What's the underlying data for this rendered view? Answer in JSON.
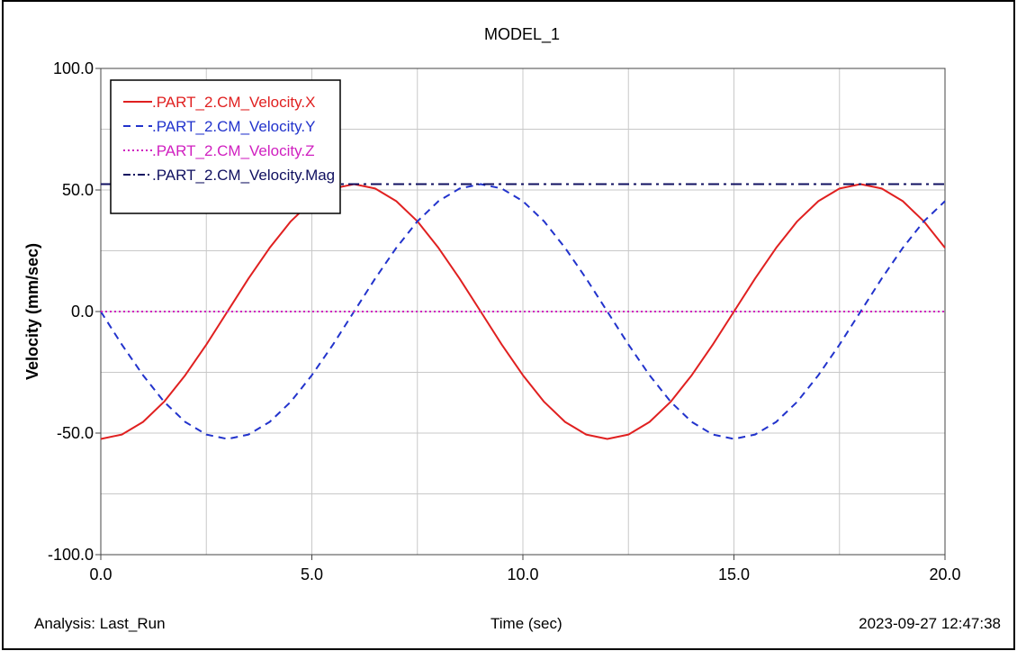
{
  "chart_data": {
    "type": "line",
    "title": "MODEL_1",
    "xlabel": "Time (sec)",
    "ylabel": "Velocity (mm/sec)",
    "xlim": [
      0,
      20
    ],
    "ylim": [
      -100,
      100
    ],
    "x_ticks": [
      0,
      5,
      10,
      15,
      20
    ],
    "x_tick_labels": [
      "0.0",
      "5.0",
      "10.0",
      "15.0",
      "20.0"
    ],
    "y_ticks": [
      -100,
      -50,
      0,
      50,
      100
    ],
    "y_tick_labels": [
      "-100.0",
      "-50.0",
      "0.0",
      "50.0",
      "100.0"
    ],
    "grid": true,
    "legend_position": "top-left",
    "x": [
      0,
      0.5,
      1,
      1.5,
      2,
      2.5,
      3,
      3.5,
      4,
      4.5,
      5,
      5.5,
      6,
      6.5,
      7,
      7.5,
      8,
      8.5,
      9,
      9.5,
      10,
      10.5,
      11,
      11.5,
      12,
      12.5,
      13,
      13.5,
      14,
      14.5,
      15,
      15.5,
      16,
      16.5,
      17,
      17.5,
      18,
      18.5,
      19,
      19.5,
      20
    ],
    "series": [
      {
        "name": ".PART_2.CM_Velocity.X",
        "color": "#e02020",
        "dash": "solid",
        "values": [
          -52.4,
          -50.6,
          -45.4,
          -37.1,
          -26.2,
          -13.6,
          0,
          13.6,
          26.2,
          37.1,
          45.4,
          50.6,
          52.4,
          50.6,
          45.4,
          37.1,
          26.2,
          13.6,
          0,
          -13.6,
          -26.2,
          -37.1,
          -45.4,
          -50.6,
          -52.4,
          -50.6,
          -45.4,
          -37.1,
          -26.2,
          -13.6,
          0,
          13.6,
          26.2,
          37.1,
          45.4,
          50.6,
          52.4,
          50.6,
          45.4,
          37.1,
          26.2
        ]
      },
      {
        "name": ".PART_2.CM_Velocity.Y",
        "color": "#2233cc",
        "dash": "dashed",
        "values": [
          0,
          -13.6,
          -26.2,
          -37.1,
          -45.4,
          -50.6,
          -52.4,
          -50.6,
          -45.4,
          -37.1,
          -26.2,
          -13.6,
          0,
          13.6,
          26.2,
          37.1,
          45.4,
          50.6,
          52.4,
          50.6,
          45.4,
          37.1,
          26.2,
          13.6,
          0,
          -13.6,
          -26.2,
          -37.1,
          -45.4,
          -50.6,
          -52.4,
          -50.6,
          -45.4,
          -37.1,
          -26.2,
          -13.6,
          0,
          13.6,
          26.2,
          37.1,
          45.4
        ]
      },
      {
        "name": ".PART_2.CM_Velocity.Z",
        "color": "#d020c0",
        "dash": "dotted",
        "values": [
          0,
          0,
          0,
          0,
          0,
          0,
          0,
          0,
          0,
          0,
          0,
          0,
          0,
          0,
          0,
          0,
          0,
          0,
          0,
          0,
          0,
          0,
          0,
          0,
          0,
          0,
          0,
          0,
          0,
          0,
          0,
          0,
          0,
          0,
          0,
          0,
          0,
          0,
          0,
          0,
          0
        ]
      },
      {
        "name": ".PART_2.CM_Velocity.Mag",
        "color": "#101060",
        "dash": "dashdot",
        "values": [
          52.4,
          52.4,
          52.4,
          52.4,
          52.4,
          52.4,
          52.4,
          52.4,
          52.4,
          52.4,
          52.4,
          52.4,
          52.4,
          52.4,
          52.4,
          52.4,
          52.4,
          52.4,
          52.4,
          52.4,
          52.4,
          52.4,
          52.4,
          52.4,
          52.4,
          52.4,
          52.4,
          52.4,
          52.4,
          52.4,
          52.4,
          52.4,
          52.4,
          52.4,
          52.4,
          52.4,
          52.4,
          52.4,
          52.4,
          52.4,
          52.4
        ]
      }
    ]
  },
  "footer": {
    "analysis": "Analysis:  Last_Run",
    "timestamp": "2023-09-27 12:47:38"
  }
}
